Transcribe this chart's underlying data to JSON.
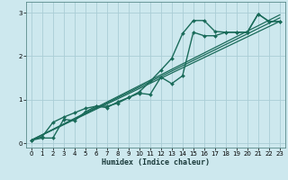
{
  "xlabel": "Humidex (Indice chaleur)",
  "bg_color": "#cde8ee",
  "grid_color": "#aacdd6",
  "line_color": "#1a6b5a",
  "xlim": [
    -0.5,
    23.5
  ],
  "ylim": [
    -0.1,
    3.25
  ],
  "xticks": [
    0,
    1,
    2,
    3,
    4,
    5,
    6,
    7,
    8,
    9,
    10,
    11,
    12,
    13,
    14,
    15,
    16,
    17,
    18,
    19,
    20,
    21,
    22,
    23
  ],
  "yticks": [
    0,
    1,
    2,
    3
  ],
  "series": [
    {
      "x": [
        0,
        1,
        2,
        3,
        4,
        5,
        6,
        7,
        8,
        9,
        10,
        11,
        12,
        13,
        14,
        15,
        16,
        17,
        18,
        19,
        20,
        21,
        22,
        23
      ],
      "y": [
        0.07,
        0.15,
        0.48,
        0.6,
        0.7,
        0.8,
        0.85,
        0.85,
        0.92,
        1.05,
        1.18,
        1.42,
        1.68,
        1.95,
        2.52,
        2.82,
        2.82,
        2.57,
        2.55,
        2.55,
        2.55,
        2.97,
        2.8,
        2.8
      ],
      "marker": true,
      "lw": 1.0
    },
    {
      "x": [
        0,
        23
      ],
      "y": [
        0.07,
        2.8
      ],
      "marker": false,
      "lw": 0.9
    },
    {
      "x": [
        0,
        23
      ],
      "y": [
        0.07,
        2.88
      ],
      "marker": false,
      "lw": 0.9
    },
    {
      "x": [
        0,
        23
      ],
      "y": [
        0.07,
        2.95
      ],
      "marker": false,
      "lw": 0.9
    },
    {
      "x": [
        0,
        1,
        2,
        3,
        4,
        5,
        6,
        7,
        8,
        9,
        10,
        11,
        12,
        13,
        14,
        15,
        16,
        17,
        18,
        19,
        20,
        21,
        22,
        23
      ],
      "y": [
        0.07,
        0.12,
        0.12,
        0.55,
        0.52,
        0.72,
        0.85,
        0.82,
        0.95,
        1.05,
        1.15,
        1.12,
        1.52,
        1.37,
        1.55,
        2.55,
        2.47,
        2.47,
        2.55,
        2.55,
        2.55,
        2.97,
        2.8,
        2.8
      ],
      "marker": true,
      "lw": 1.0
    }
  ]
}
